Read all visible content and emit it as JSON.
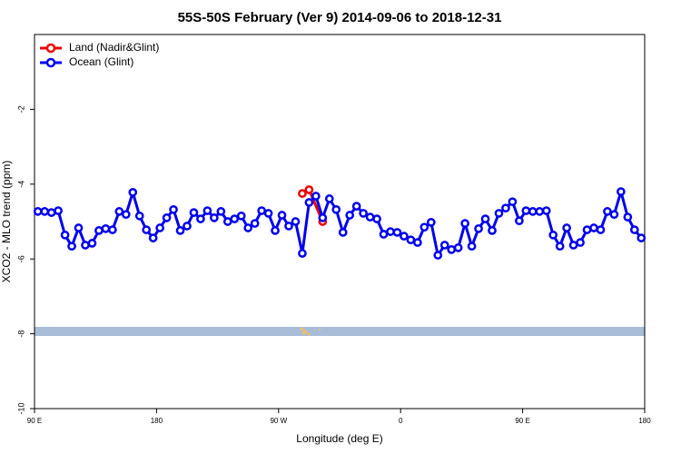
{
  "chart_data": {
    "type": "line",
    "title": "55S-50S February (Ver 9)   2014-09-06 to 2018-12-31",
    "x_label": "Longitude (deg E)",
    "y_label": "XCO2 - MLO trend (ppm)",
    "xlim": [
      90,
      540
    ],
    "ylim": [
      -10,
      0
    ],
    "xticks": [
      {
        "value": 90,
        "label": "90 E"
      },
      {
        "value": 180,
        "label": "180"
      },
      {
        "value": 270,
        "label": "90 W"
      },
      {
        "value": 360,
        "label": "0"
      },
      {
        "value": 450,
        "label": "90 E"
      },
      {
        "value": 540,
        "label": "180"
      }
    ],
    "yticks": [
      -10,
      -8,
      -6,
      -4,
      -2
    ],
    "legend": "upper left",
    "series": [
      {
        "name": "Land (Nadir&Glint)",
        "color": "#ee0000",
        "x": [
          287.5,
          292.5,
          302.5
        ],
        "values": [
          -4.25,
          -4.15,
          -5.0
        ]
      },
      {
        "name": "Ocean (Glint)",
        "color": "#0000ee",
        "x": [
          92.5,
          97.5,
          102.5,
          107.5,
          112.5,
          117.5,
          122.5,
          127.5,
          132.5,
          137.5,
          142.5,
          147.5,
          152.5,
          157.5,
          162.5,
          167.5,
          172.5,
          177.5,
          182.5,
          187.5,
          192.5,
          197.5,
          202.5,
          207.5,
          212.5,
          217.5,
          222.5,
          227.5,
          232.5,
          237.5,
          242.5,
          247.5,
          252.5,
          257.5,
          262.5,
          267.5,
          272.5,
          277.5,
          282.5,
          287.5,
          292.5,
          297.5,
          302.5,
          307.5,
          312.5,
          317.5,
          322.5,
          327.5,
          332.5,
          337.5,
          342.5,
          347.5,
          352.5,
          357.5,
          362.5,
          367.5,
          372.5,
          377.5,
          382.5,
          387.5,
          392.5,
          397.5,
          402.5,
          407.5,
          412.5,
          417.5,
          422.5,
          427.5,
          432.5,
          437.5,
          442.5,
          447.5,
          452.5,
          457.5,
          462.5,
          467.5,
          472.5,
          477.5,
          482.5,
          487.5,
          492.5,
          497.5,
          502.5,
          507.5,
          512.5,
          517.5,
          522.5,
          527.5,
          532.5,
          537.5
        ],
        "values": [
          -4.73,
          -4.73,
          -4.76,
          -4.71,
          -5.36,
          -5.66,
          -5.17,
          -5.63,
          -5.58,
          -5.24,
          -5.19,
          -5.22,
          -4.73,
          -4.81,
          -4.22,
          -4.85,
          -5.22,
          -5.44,
          -5.17,
          -4.9,
          -4.68,
          -5.24,
          -5.12,
          -4.76,
          -4.93,
          -4.71,
          -4.9,
          -4.73,
          -5.0,
          -4.93,
          -4.85,
          -5.17,
          -5.05,
          -4.71,
          -4.78,
          -5.24,
          -4.83,
          -5.12,
          -5.0,
          -5.85,
          -4.49,
          -4.32,
          -4.9,
          -4.39,
          -4.68,
          -5.29,
          -4.83,
          -4.59,
          -4.78,
          -4.88,
          -4.93,
          -5.34,
          -5.27,
          -5.29,
          -5.39,
          -5.49,
          -5.56,
          -5.15,
          -5.02,
          -5.9,
          -5.63,
          -5.75,
          -5.7,
          -5.05,
          -5.66,
          -5.19,
          -4.93,
          -5.24,
          -4.78,
          -4.64,
          -4.47,
          -4.98,
          -4.71,
          -4.73,
          -4.73,
          -4.71,
          -5.36,
          -5.66,
          -5.17,
          -5.63,
          -5.56,
          -5.22,
          -5.17,
          -5.22,
          -4.73,
          -4.81,
          -4.2,
          -4.88,
          -5.22,
          -5.44
        ]
      }
    ]
  }
}
